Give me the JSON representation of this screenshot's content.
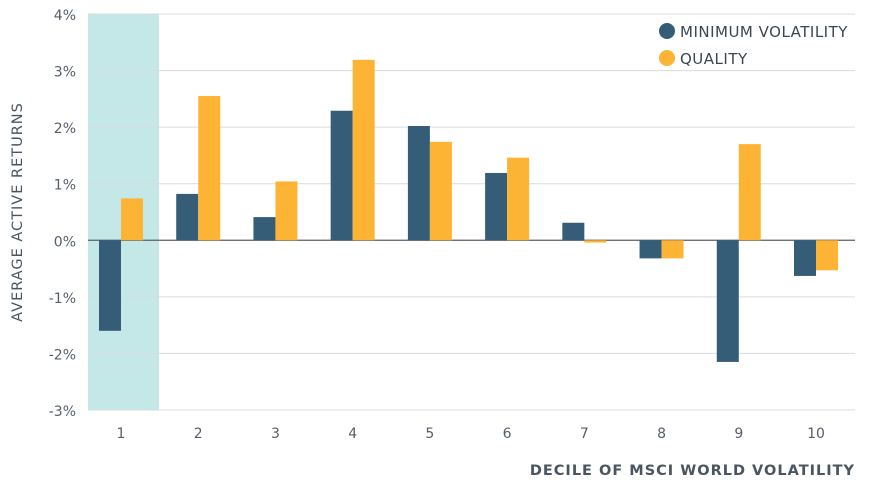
{
  "chart_data": {
    "type": "bar",
    "xlabel": "DECILE OF MSCI WORLD VOLATILITY",
    "ylabel": "AVERAGE ACTIVE RETURNS",
    "ylim": [
      -3,
      4
    ],
    "yticks": [
      -3,
      -2,
      -1,
      0,
      1,
      2,
      3,
      4
    ],
    "ytick_labels": [
      "-3%",
      "-2%",
      "-1%",
      "0%",
      "1%",
      "2%",
      "3%",
      "4%"
    ],
    "categories": [
      "1",
      "2",
      "3",
      "4",
      "5",
      "6",
      "7",
      "8",
      "9",
      "10"
    ],
    "highlighted_category": "1",
    "grid": true,
    "legend_position": "top-right",
    "series": [
      {
        "name": "MINIMUM VOLATILITY",
        "color": "#355d77",
        "values": [
          -1.6,
          0.82,
          0.41,
          2.29,
          2.02,
          1.19,
          0.31,
          -0.32,
          -2.15,
          -0.63
        ]
      },
      {
        "name": "QUALITY",
        "color": "#fdb334",
        "values": [
          0.74,
          2.55,
          1.04,
          3.19,
          1.74,
          1.46,
          -0.04,
          -0.32,
          1.7,
          -0.53
        ]
      }
    ],
    "highlight_color": "#c4e7e7"
  }
}
